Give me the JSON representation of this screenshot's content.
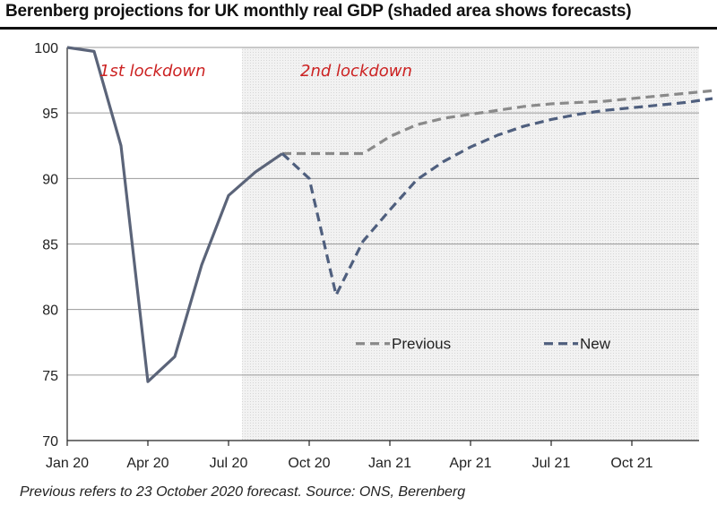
{
  "header": {
    "title": "Berenberg projections for UK monthly real GDP (shaded area shows forecasts)"
  },
  "footer": {
    "note": "Previous refers to 23 October 2020 forecast. Source: ONS, Berenberg"
  },
  "colors": {
    "actual": "#5b6479",
    "previous": "#8a8a8a",
    "new": "#4f5f7e",
    "annotation": "#cc2222",
    "forecast_shade": "#efefef",
    "grid": "#9a9a9a"
  },
  "chart_data": {
    "type": "line",
    "title": "Berenberg projections for UK monthly real GDP (shaded area shows forecasts)",
    "xlabel": "",
    "ylabel": "",
    "ylim": [
      70,
      100
    ],
    "yticks": [
      70,
      75,
      80,
      85,
      90,
      95,
      100
    ],
    "grid": true,
    "x_tick_labels": [
      "Jan 20",
      "Apr 20",
      "Jul 20",
      "Oct 20",
      "Jan 21",
      "Apr 21",
      "Jul 21",
      "Oct 21"
    ],
    "x_tick_months": [
      "2020-01",
      "2020-04",
      "2020-07",
      "2020-10",
      "2021-01",
      "2021-04",
      "2021-07",
      "2021-10"
    ],
    "forecast_start": "2020-08",
    "annotations": [
      {
        "text": "1st lockdown",
        "month": "2020-03"
      },
      {
        "text": "2nd lockdown",
        "month": "2020-10"
      }
    ],
    "legend": {
      "placement": "inside-bottom",
      "entries": [
        "Previous",
        "New"
      ]
    },
    "series": [
      {
        "role": "actual",
        "style": "solid",
        "points": [
          [
            "2020-01",
            100.0
          ],
          [
            "2020-02",
            99.7
          ],
          [
            "2020-03",
            92.5
          ],
          [
            "2020-04",
            74.5
          ],
          [
            "2020-05",
            76.4
          ],
          [
            "2020-06",
            83.4
          ],
          [
            "2020-07",
            88.7
          ],
          [
            "2020-08",
            90.5
          ],
          [
            "2020-09",
            91.9
          ]
        ]
      },
      {
        "name": "Previous",
        "style": "dashed",
        "points": [
          [
            "2020-09",
            91.9
          ],
          [
            "2020-10",
            91.9
          ],
          [
            "2020-11",
            91.9
          ],
          [
            "2020-12",
            91.9
          ],
          [
            "2021-01",
            93.2
          ],
          [
            "2021-02",
            94.1
          ],
          [
            "2021-03",
            94.6
          ],
          [
            "2021-04",
            94.9
          ],
          [
            "2021-05",
            95.2
          ],
          [
            "2021-06",
            95.5
          ],
          [
            "2021-07",
            95.7
          ],
          [
            "2021-08",
            95.8
          ],
          [
            "2021-09",
            95.9
          ],
          [
            "2021-10",
            96.1
          ],
          [
            "2021-11",
            96.3
          ],
          [
            "2021-12",
            96.5
          ],
          [
            "2022-01",
            96.7
          ]
        ]
      },
      {
        "name": "New",
        "style": "dashed",
        "points": [
          [
            "2020-09",
            91.9
          ],
          [
            "2020-10",
            90.0
          ],
          [
            "2020-11",
            81.1
          ],
          [
            "2020-12",
            85.2
          ],
          [
            "2021-01",
            87.6
          ],
          [
            "2021-02",
            89.9
          ],
          [
            "2021-03",
            91.3
          ],
          [
            "2021-04",
            92.4
          ],
          [
            "2021-05",
            93.3
          ],
          [
            "2021-06",
            94.0
          ],
          [
            "2021-07",
            94.5
          ],
          [
            "2021-08",
            94.9
          ],
          [
            "2021-09",
            95.2
          ],
          [
            "2021-10",
            95.4
          ],
          [
            "2021-11",
            95.6
          ],
          [
            "2021-12",
            95.8
          ],
          [
            "2022-01",
            96.1
          ]
        ]
      }
    ]
  }
}
